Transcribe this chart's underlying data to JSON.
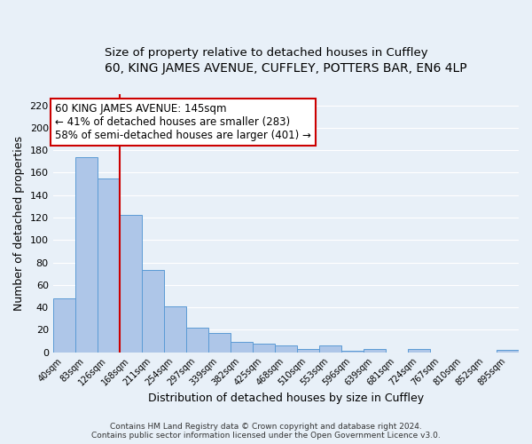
{
  "title": "60, KING JAMES AVENUE, CUFFLEY, POTTERS BAR, EN6 4LP",
  "subtitle": "Size of property relative to detached houses in Cuffley",
  "xlabel": "Distribution of detached houses by size in Cuffley",
  "ylabel": "Number of detached properties",
  "categories": [
    "40sqm",
    "83sqm",
    "126sqm",
    "168sqm",
    "211sqm",
    "254sqm",
    "297sqm",
    "339sqm",
    "382sqm",
    "425sqm",
    "468sqm",
    "510sqm",
    "553sqm",
    "596sqm",
    "639sqm",
    "681sqm",
    "724sqm",
    "767sqm",
    "810sqm",
    "852sqm",
    "895sqm"
  ],
  "values": [
    48,
    174,
    155,
    122,
    73,
    41,
    22,
    17,
    9,
    8,
    6,
    3,
    6,
    1,
    3,
    0,
    3,
    0,
    0,
    0,
    2
  ],
  "bar_color": "#aec6e8",
  "bar_edge_color": "#5b9bd5",
  "vline_x": 2.5,
  "vline_color": "#cc0000",
  "annotation_title": "60 KING JAMES AVENUE: 145sqm",
  "annotation_line1": "← 41% of detached houses are smaller (283)",
  "annotation_line2": "58% of semi-detached houses are larger (401) →",
  "annotation_box_facecolor": "#ffffff",
  "annotation_box_edgecolor": "#cc0000",
  "ylim": [
    0,
    230
  ],
  "yticks": [
    0,
    20,
    40,
    60,
    80,
    100,
    120,
    140,
    160,
    180,
    200,
    220
  ],
  "bg_color": "#e8f0f8",
  "footer_line1": "Contains HM Land Registry data © Crown copyright and database right 2024.",
  "footer_line2": "Contains public sector information licensed under the Open Government Licence v3.0.",
  "title_fontsize": 10,
  "subtitle_fontsize": 9.5
}
